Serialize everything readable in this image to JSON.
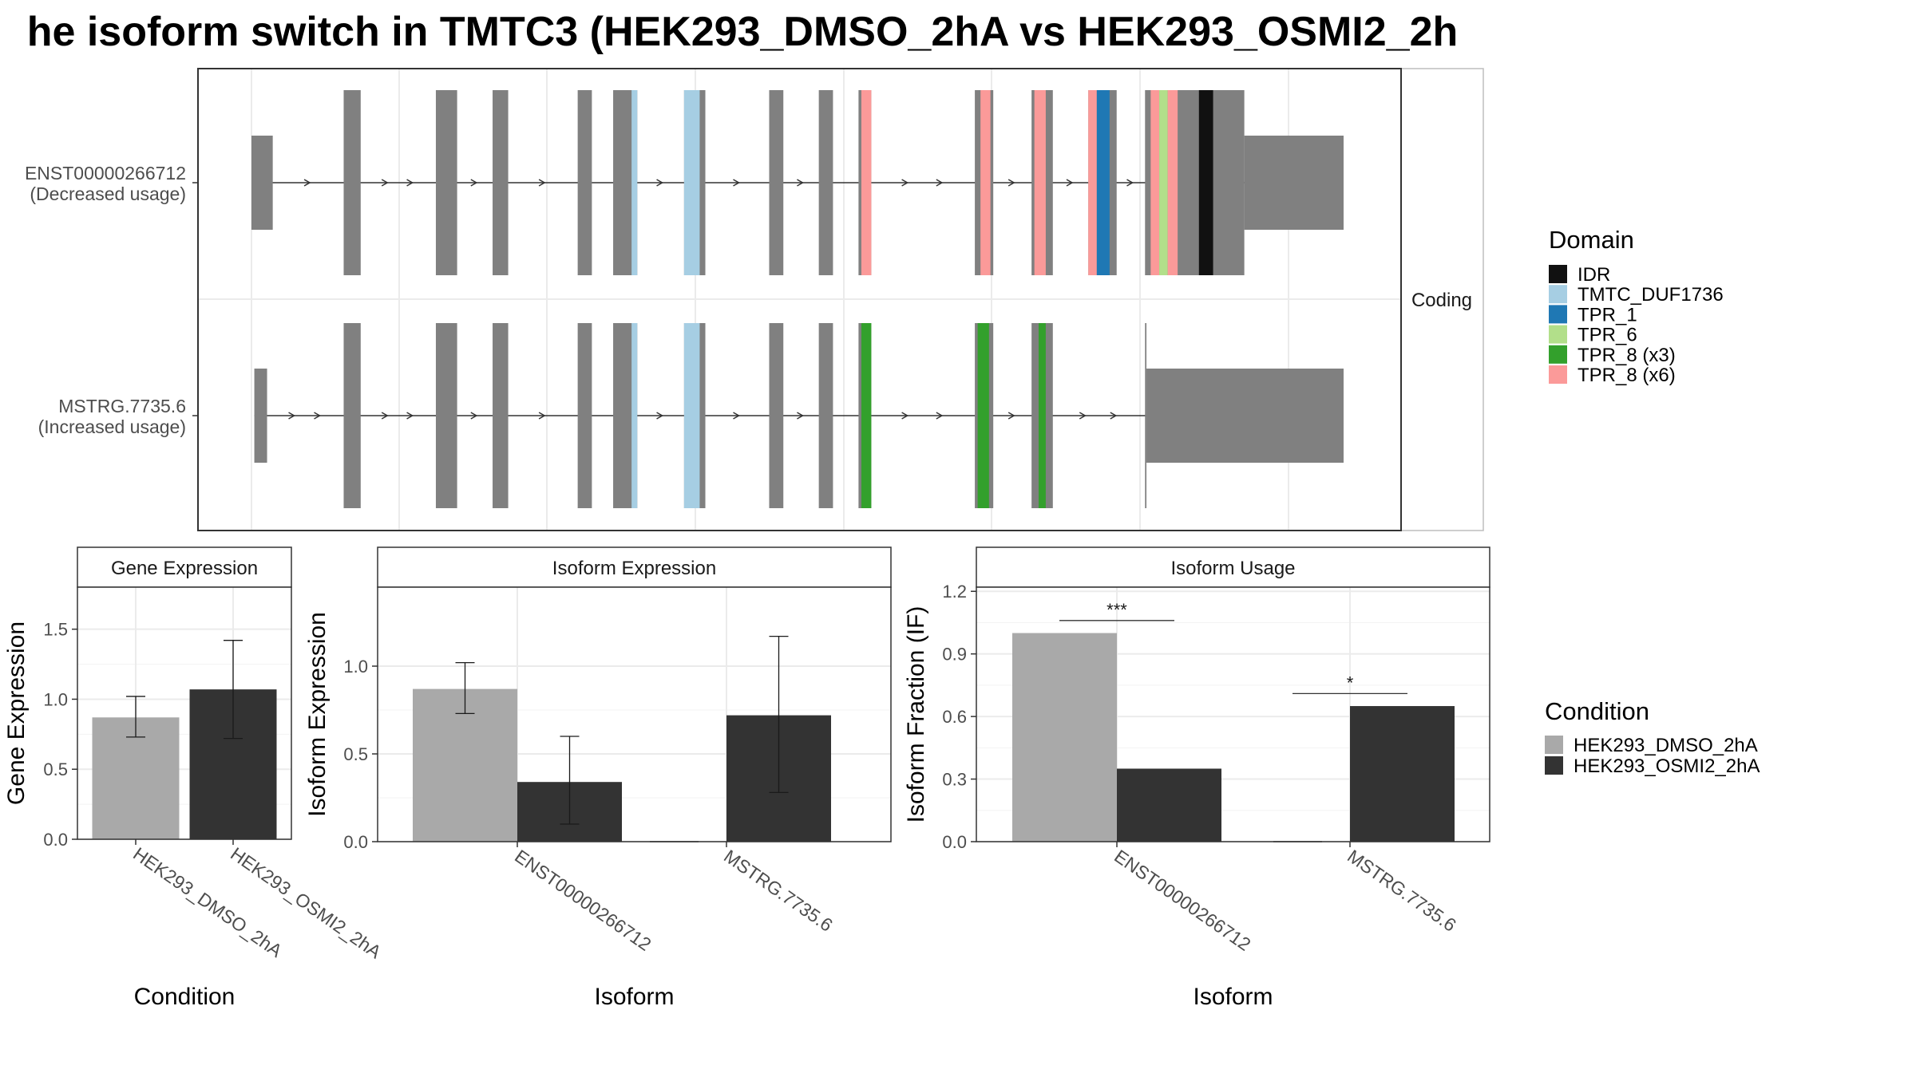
{
  "title": "he isoform switch in TMTC3 (HEK293_DMSO_2hA vs HEK293_OSMI2_2h",
  "colors": {
    "exon": "#808080",
    "cond1": "#a9a9a9",
    "cond2": "#333333",
    "IDR": "#111111",
    "TMTC_DUF1736": "#a6cee3",
    "TPR_1": "#1f78b4",
    "TPR_6": "#b2df8a",
    "TPR_8_x3": "#33a02c",
    "TPR_8_x6": "#fb9a99"
  },
  "chart_data": [
    {
      "type": "gene-structure",
      "strip_label": "Coding",
      "isoforms": [
        {
          "name": "ENST00000266712",
          "usage": "(Decreased usage)",
          "exons": [
            {
              "start": 0.0,
              "end": 1.5,
              "tall": false
            },
            {
              "start": 6.5,
              "end": 7.7,
              "tall": true
            },
            {
              "start": 13.0,
              "end": 14.5,
              "tall": true
            },
            {
              "start": 17.0,
              "end": 18.1,
              "tall": true
            },
            {
              "start": 23.0,
              "end": 24.0,
              "tall": true
            },
            {
              "start": 25.5,
              "end": 27.2,
              "tall": true
            },
            {
              "start": 30.5,
              "end": 32.0,
              "tall": true
            },
            {
              "start": 36.5,
              "end": 37.5,
              "tall": true
            },
            {
              "start": 40.0,
              "end": 41.0,
              "tall": true
            },
            {
              "start": 42.8,
              "end": 43.7,
              "tall": true
            },
            {
              "start": 51.0,
              "end": 52.3,
              "tall": true
            },
            {
              "start": 55.0,
              "end": 56.5,
              "tall": true
            },
            {
              "start": 59.0,
              "end": 61.0,
              "tall": true
            },
            {
              "start": 63.0,
              "end": 70.0,
              "tall": true
            },
            {
              "start": 70.0,
              "end": 77.0,
              "tall": false
            }
          ],
          "domains": [
            {
              "name": "TMTC_DUF1736",
              "start": 26.8,
              "end": 27.2
            },
            {
              "name": "TMTC_DUF1736",
              "start": 30.5,
              "end": 31.6
            },
            {
              "name": "TPR_8_x6",
              "start": 43.0,
              "end": 43.7
            },
            {
              "name": "TPR_8_x6",
              "start": 51.4,
              "end": 52.1
            },
            {
              "name": "TPR_8_x6",
              "start": 55.2,
              "end": 56.0
            },
            {
              "name": "TPR_8_x6",
              "start": 59.0,
              "end": 59.6
            },
            {
              "name": "TPR_1",
              "start": 59.6,
              "end": 60.5
            },
            {
              "name": "TPR_8_x6",
              "start": 63.4,
              "end": 64.0
            },
            {
              "name": "TPR_6",
              "start": 64.0,
              "end": 64.6
            },
            {
              "name": "TPR_8_x6",
              "start": 64.6,
              "end": 65.3
            },
            {
              "name": "IDR",
              "start": 66.8,
              "end": 67.8
            }
          ]
        },
        {
          "name": "MSTRG.7735.6",
          "usage": "(Increased usage)",
          "exons": [
            {
              "start": 0.2,
              "end": 1.1,
              "tall": false
            },
            {
              "start": 6.5,
              "end": 7.7,
              "tall": true
            },
            {
              "start": 13.0,
              "end": 14.5,
              "tall": true
            },
            {
              "start": 17.0,
              "end": 18.1,
              "tall": true
            },
            {
              "start": 23.0,
              "end": 24.0,
              "tall": true
            },
            {
              "start": 25.5,
              "end": 27.2,
              "tall": true
            },
            {
              "start": 30.5,
              "end": 32.0,
              "tall": true
            },
            {
              "start": 36.5,
              "end": 37.5,
              "tall": true
            },
            {
              "start": 40.0,
              "end": 41.0,
              "tall": true
            },
            {
              "start": 42.8,
              "end": 43.7,
              "tall": true
            },
            {
              "start": 51.0,
              "end": 52.3,
              "tall": true
            },
            {
              "start": 55.0,
              "end": 56.5,
              "tall": true
            },
            {
              "start": 63.0,
              "end": 63.1,
              "tall": true
            },
            {
              "start": 63.1,
              "end": 77.0,
              "tall": false
            }
          ],
          "domains": [
            {
              "name": "TMTC_DUF1736",
              "start": 26.8,
              "end": 27.2
            },
            {
              "name": "TMTC_DUF1736",
              "start": 30.5,
              "end": 31.6
            },
            {
              "name": "TPR_8_x3",
              "start": 43.0,
              "end": 43.7
            },
            {
              "name": "TPR_8_x3",
              "start": 51.2,
              "end": 52.0
            },
            {
              "name": "TPR_8_x3",
              "start": 55.5,
              "end": 56.0
            }
          ]
        }
      ]
    },
    {
      "type": "bar",
      "strip_label": "Gene Expression",
      "xlabel": "Condition",
      "ylabel": "Gene Expression",
      "ylim": [
        0,
        1.8
      ],
      "yticks": [
        "0.0",
        "0.5",
        "1.0",
        "1.5"
      ],
      "categories": [
        "HEK293_DMSO_2hA",
        "HEK293_OSMI2_2hA"
      ],
      "values": [
        0.87,
        1.07
      ],
      "err_low": [
        0.73,
        0.72
      ],
      "err_high": [
        1.02,
        1.42
      ]
    },
    {
      "type": "bar",
      "strip_label": "Isoform Expression",
      "xlabel": "Isoform",
      "ylabel": "Isoform Expression",
      "ylim": [
        0,
        1.45
      ],
      "yticks": [
        "0.0",
        "0.5",
        "1.0"
      ],
      "categories": [
        "ENST00000266712",
        "MSTRG.7735.6"
      ],
      "series": [
        {
          "name": "HEK293_DMSO_2hA",
          "values": [
            0.87,
            0.0
          ],
          "err_low": [
            0.73,
            0.0
          ],
          "err_high": [
            1.02,
            0.0
          ]
        },
        {
          "name": "HEK293_OSMI2_2hA",
          "values": [
            0.34,
            0.72
          ],
          "err_low": [
            0.1,
            0.28
          ],
          "err_high": [
            0.6,
            1.17
          ]
        }
      ]
    },
    {
      "type": "bar",
      "strip_label": "Isoform Usage",
      "xlabel": "Isoform",
      "ylabel": "Isoform Fraction (IF)",
      "ylim": [
        0,
        1.22
      ],
      "yticks": [
        "0.0",
        "0.3",
        "0.6",
        "0.9",
        "1.2"
      ],
      "categories": [
        "ENST00000266712",
        "MSTRG.7735.6"
      ],
      "series": [
        {
          "name": "HEK293_DMSO_2hA",
          "values": [
            1.0,
            0.0
          ]
        },
        {
          "name": "HEK293_OSMI2_2hA",
          "values": [
            0.35,
            0.65
          ]
        }
      ],
      "significance": [
        {
          "label": "***",
          "y": 1.06
        },
        {
          "label": "*",
          "y": 0.71
        }
      ]
    }
  ],
  "legends": {
    "domain": {
      "title": "Domain",
      "items": [
        {
          "label": "IDR",
          "key": "IDR"
        },
        {
          "label": "TMTC_DUF1736",
          "key": "TMTC_DUF1736"
        },
        {
          "label": "TPR_1",
          "key": "TPR_1"
        },
        {
          "label": "TPR_6",
          "key": "TPR_6"
        },
        {
          "label": "TPR_8 (x3)",
          "key": "TPR_8_x3"
        },
        {
          "label": "TPR_8 (x6)",
          "key": "TPR_8_x6"
        }
      ]
    },
    "condition": {
      "title": "Condition",
      "items": [
        {
          "label": "HEK293_DMSO_2hA",
          "key": "cond1"
        },
        {
          "label": "HEK293_OSMI2_2hA",
          "key": "cond2"
        }
      ]
    }
  }
}
